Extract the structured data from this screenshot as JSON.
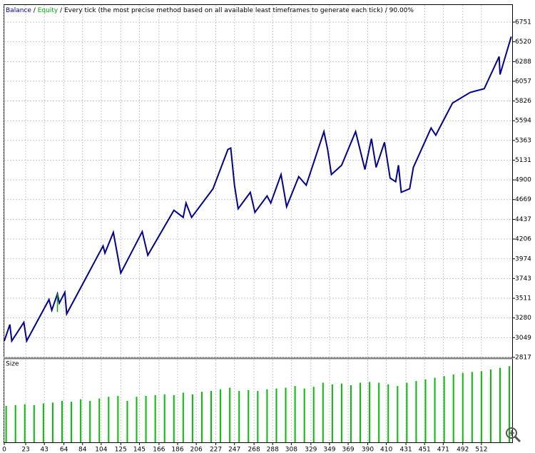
{
  "chart_data": [
    {
      "type": "line",
      "separator": "/",
      "subtitle": "Every tick (the most precise method based on all available least timeframes to generate each tick)",
      "quality": "90.00%",
      "xlim": [
        0,
        545
      ],
      "xticks": [
        0,
        23,
        43,
        64,
        84,
        104,
        125,
        145,
        166,
        186,
        206,
        227,
        247,
        268,
        288,
        308,
        329,
        349,
        369,
        390,
        410,
        431,
        451,
        471,
        492,
        512
      ],
      "ylim": [
        2817,
        6952
      ],
      "yticks": [
        2817,
        3049,
        3280,
        3511,
        3743,
        3974,
        4206,
        4437,
        4669,
        4900,
        5131,
        5363,
        5594,
        5826,
        6057,
        6288,
        6520,
        6751
      ],
      "grid": true,
      "series": [
        {
          "name": "Balance",
          "color": "#0000a0",
          "x": [
            0,
            6,
            8,
            21,
            24,
            48,
            51,
            57,
            59,
            65,
            67,
            106,
            108,
            117,
            125,
            148,
            154,
            182,
            192,
            195,
            201,
            224,
            240,
            243,
            247,
            251,
            264,
            269,
            282,
            286,
            297,
            303,
            316,
            324,
            343,
            347,
            351,
            362,
            377,
            387,
            394,
            399,
            408,
            414,
            420,
            423,
            426,
            435,
            439,
            458,
            463,
            473,
            481,
            500,
            515,
            531,
            532,
            544
          ],
          "values": [
            3010,
            3203,
            3010,
            3228,
            3010,
            3496,
            3370,
            3563,
            3454,
            3580,
            3328,
            4125,
            4041,
            4284,
            3806,
            4293,
            4016,
            4544,
            4460,
            4628,
            4460,
            4796,
            5257,
            5274,
            4838,
            4561,
            4754,
            4519,
            4712,
            4628,
            4963,
            4586,
            4938,
            4838,
            5466,
            5257,
            4963,
            5072,
            5466,
            5022,
            5383,
            5047,
            5341,
            4921,
            4879,
            5072,
            4754,
            4796,
            5047,
            5508,
            5424,
            5634,
            5802,
            5927,
            5969,
            6347,
            6137,
            6581
          ]
        },
        {
          "name": "Equity",
          "color": "#00b000",
          "x": [
            57,
            57
          ],
          "values": [
            3563,
            3350
          ]
        }
      ]
    },
    {
      "type": "bar",
      "title": "Size",
      "color": "#00c000",
      "ylim": [
        0,
        1
      ],
      "x": [
        2,
        12,
        22,
        32,
        42,
        52,
        62,
        72,
        82,
        92,
        102,
        112,
        122,
        132,
        142,
        152,
        162,
        172,
        182,
        192,
        202,
        212,
        222,
        232,
        242,
        252,
        262,
        272,
        282,
        292,
        302,
        312,
        322,
        332,
        342,
        352,
        362,
        372,
        382,
        392,
        402,
        412,
        422,
        432,
        442,
        452,
        462,
        472,
        482,
        492,
        502,
        512,
        522,
        532,
        542
      ],
      "values": [
        0.44,
        0.45,
        0.46,
        0.45,
        0.47,
        0.48,
        0.5,
        0.49,
        0.52,
        0.5,
        0.53,
        0.55,
        0.56,
        0.5,
        0.55,
        0.56,
        0.57,
        0.58,
        0.57,
        0.6,
        0.58,
        0.61,
        0.62,
        0.64,
        0.66,
        0.62,
        0.63,
        0.62,
        0.64,
        0.65,
        0.66,
        0.68,
        0.65,
        0.67,
        0.72,
        0.7,
        0.71,
        0.69,
        0.72,
        0.73,
        0.72,
        0.7,
        0.68,
        0.72,
        0.74,
        0.76,
        0.78,
        0.8,
        0.82,
        0.84,
        0.85,
        0.86,
        0.88,
        0.9,
        0.92
      ]
    }
  ]
}
